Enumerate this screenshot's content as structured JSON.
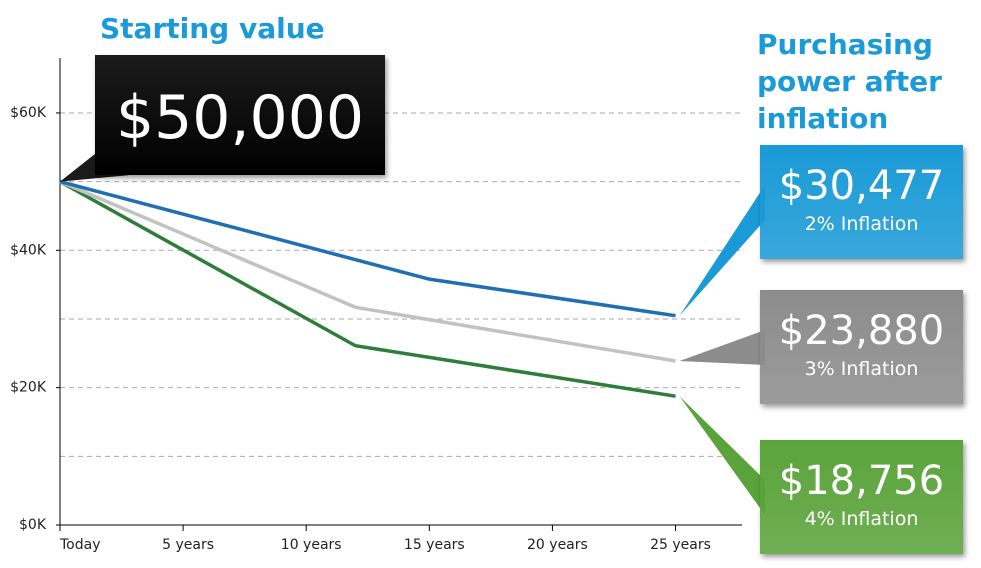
{
  "chart_data": {
    "type": "line",
    "start_title": "Starting value",
    "end_title": "Purchasing power after inflation",
    "start_color": "#1b1b1b",
    "xlim": [
      0,
      27.7
    ],
    "ylim": [
      0,
      68000
    ],
    "xticks": [
      {
        "value": 0,
        "label": "Today"
      },
      {
        "value": 5,
        "label": "5 years"
      },
      {
        "value": 10,
        "label": "10 years"
      },
      {
        "value": 15,
        "label": "15 years"
      },
      {
        "value": 20,
        "label": "20 years"
      },
      {
        "value": 25,
        "label": "25 years"
      }
    ],
    "yticks": [
      {
        "value": 0,
        "label": "$0K"
      },
      {
        "value": 20000,
        "label": "$20K"
      },
      {
        "value": 40000,
        "label": "$40K"
      },
      {
        "value": 60000,
        "label": "$60K"
      }
    ],
    "grid_yticks": [
      10000,
      20000,
      30000,
      40000,
      50000,
      60000
    ],
    "grid": true,
    "series": [
      {
        "name": "2% Inflation",
        "color": "#1f6fb2",
        "callout_color": "#1a9ad6",
        "x": [
          0,
          15,
          25
        ],
        "values": [
          50000,
          35800,
          30477
        ],
        "value_labels": [
          "$50,000",
          null,
          "$30,477"
        ]
      },
      {
        "name": "3% Inflation",
        "color": "#c2c2c2",
        "callout_color": "#8c8c8c",
        "x": [
          0,
          12,
          25
        ],
        "values": [
          50000,
          31700,
          23880
        ],
        "value_labels": [
          null,
          null,
          "$23,880"
        ]
      },
      {
        "name": "4% Inflation",
        "color": "#2e7d3a",
        "callout_color": "#5aa33a",
        "x": [
          0,
          12,
          25
        ],
        "values": [
          50000,
          26100,
          18756
        ],
        "value_labels": [
          null,
          null,
          "$18,756"
        ]
      }
    ]
  }
}
